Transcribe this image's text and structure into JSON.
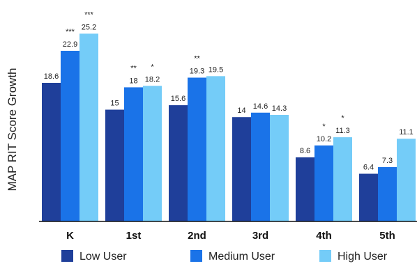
{
  "chart_data": {
    "type": "bar",
    "title": "",
    "xlabel": "",
    "ylabel": "MAP RIT Score Growth",
    "ylim": [
      0,
      26.5
    ],
    "grid": false,
    "legend_position": "bottom",
    "categories": [
      "K",
      "1st",
      "2nd",
      "3rd",
      "4th",
      "5th"
    ],
    "series": [
      {
        "name": "Low User",
        "color": "#1f3f9a",
        "values": [
          18.6,
          15,
          15.6,
          14,
          8.6,
          6.4
        ],
        "labels": [
          "18.6",
          "15",
          "15.6",
          "14",
          "8.6",
          "6.4"
        ],
        "significance": [
          "",
          "",
          "",
          "",
          "",
          ""
        ]
      },
      {
        "name": "Medium User",
        "color": "#1a73e8",
        "values": [
          22.9,
          18,
          19.3,
          14.6,
          10.2,
          7.3
        ],
        "labels": [
          "22.9",
          "18",
          "19.3",
          "14.6",
          "10.2",
          "7.3"
        ],
        "significance": [
          "***",
          "**",
          "**",
          "",
          "*",
          ""
        ]
      },
      {
        "name": "High User",
        "color": "#74ccf8",
        "values": [
          25.2,
          18.2,
          19.5,
          14.3,
          11.3,
          11.1
        ],
        "labels": [
          "25.2",
          "18.2",
          "19.5",
          "14.3",
          "11.3",
          "11.1"
        ],
        "significance": [
          "***",
          "*",
          "",
          "",
          "*",
          ""
        ]
      }
    ]
  }
}
